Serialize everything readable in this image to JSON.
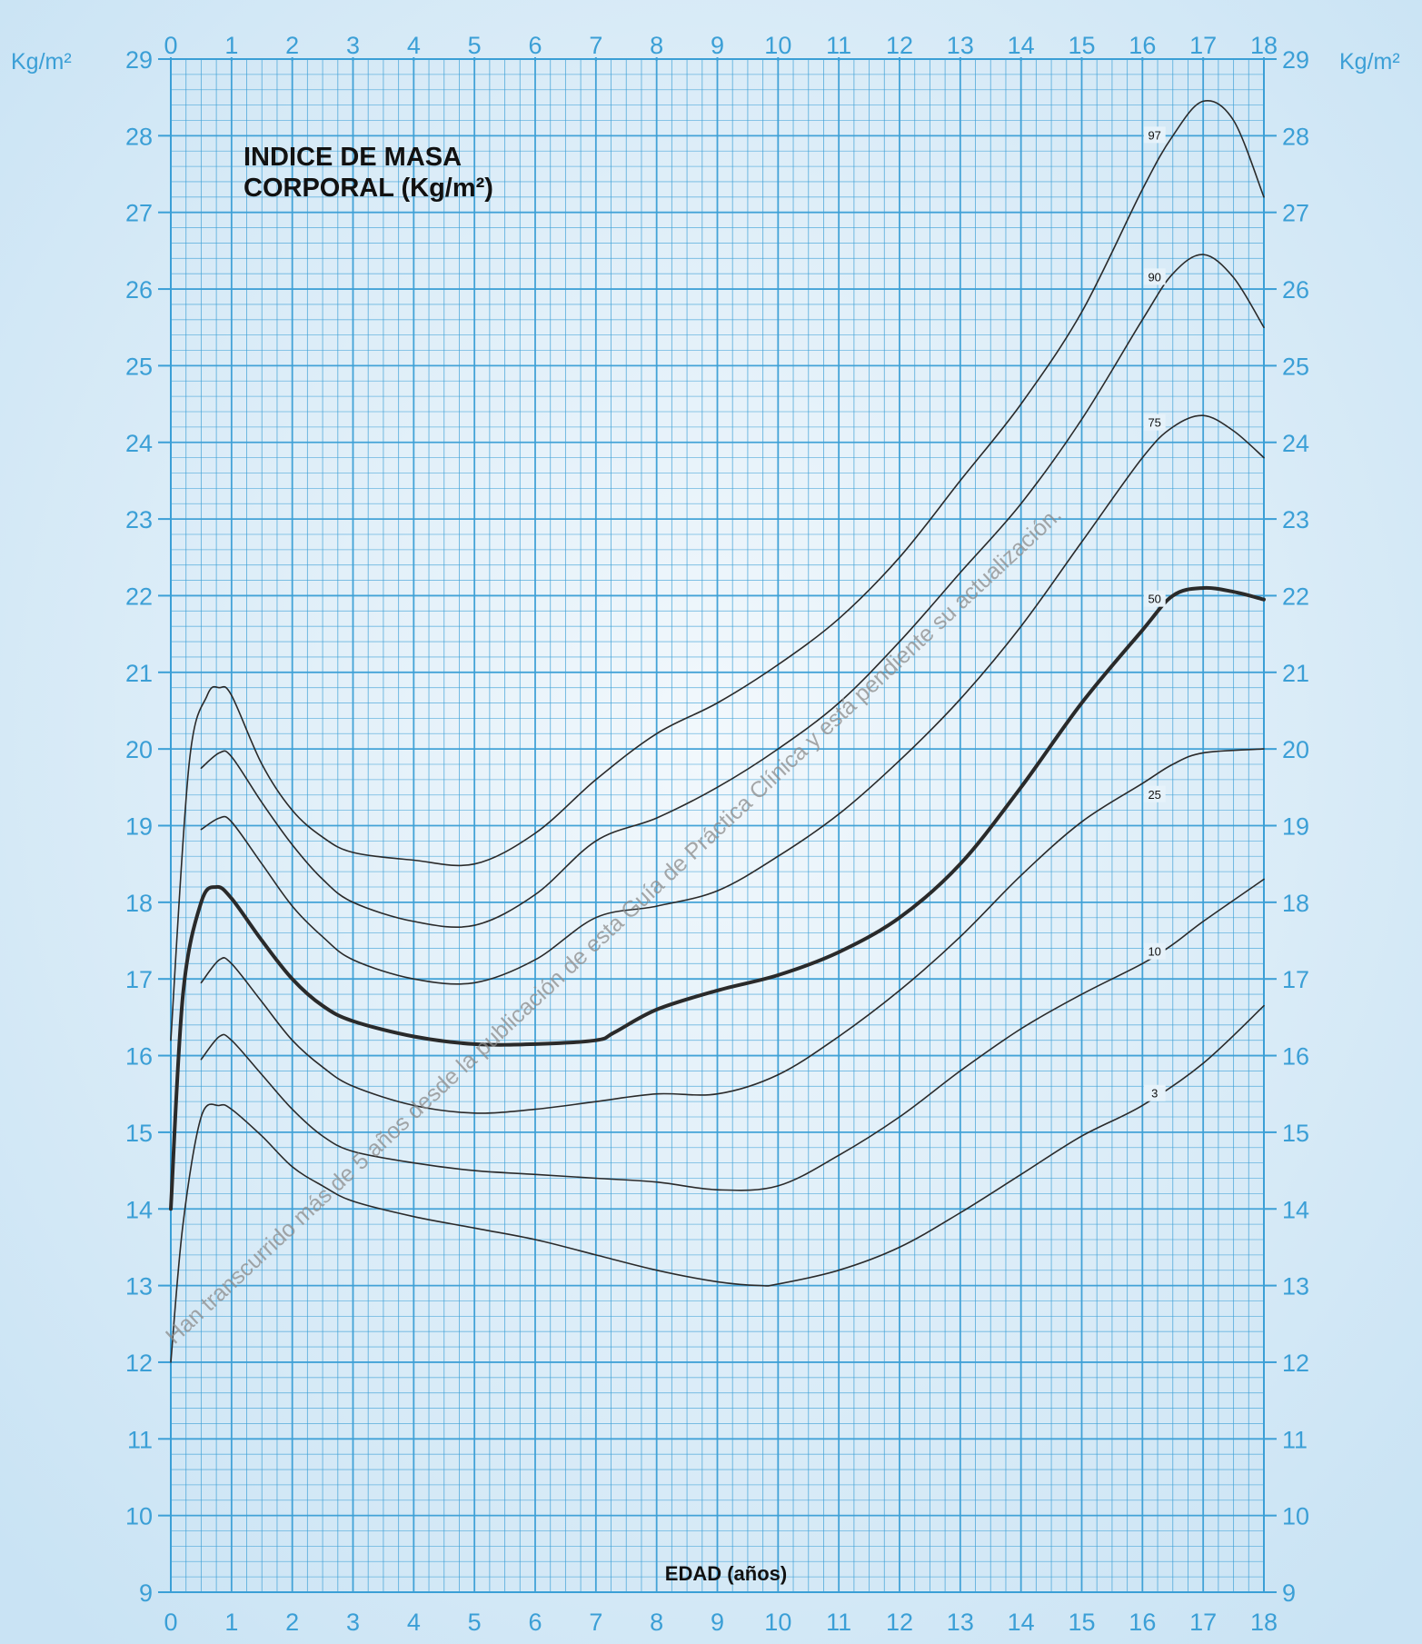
{
  "chart_data": {
    "type": "line",
    "title_lines": [
      "INDICE DE MASA",
      "CORPORAL (Kg/m²)"
    ],
    "xlabel": "EDAD (años)",
    "ylabel": "Kg/m²",
    "xlim": [
      0,
      18
    ],
    "ylim": [
      9,
      29
    ],
    "x_ticks": [
      "0",
      "1",
      "2",
      "3",
      "4",
      "5",
      "6",
      "7",
      "8",
      "9",
      "10",
      "11",
      "12",
      "13",
      "14",
      "15",
      "16",
      "17",
      "18"
    ],
    "y_ticks": [
      "9",
      "10",
      "11",
      "12",
      "13",
      "14",
      "15",
      "16",
      "17",
      "18",
      "19",
      "20",
      "21",
      "22",
      "23",
      "24",
      "25",
      "26",
      "27",
      "28",
      "29"
    ],
    "grid": true,
    "series": [
      {
        "name": "97",
        "bold": false,
        "label_at": [
          16.2,
          28.0
        ],
        "points": [
          [
            0,
            16.2
          ],
          [
            0.3,
            19.8
          ],
          [
            0.6,
            20.7
          ],
          [
            0.8,
            20.8
          ],
          [
            1.0,
            20.7
          ],
          [
            1.5,
            19.8
          ],
          [
            2,
            19.2
          ],
          [
            2.5,
            18.85
          ],
          [
            3,
            18.65
          ],
          [
            4,
            18.55
          ],
          [
            5,
            18.5
          ],
          [
            6,
            18.9
          ],
          [
            7,
            19.6
          ],
          [
            8,
            20.2
          ],
          [
            9,
            20.6
          ],
          [
            10,
            21.1
          ],
          [
            11,
            21.7
          ],
          [
            12,
            22.5
          ],
          [
            13,
            23.5
          ],
          [
            14,
            24.5
          ],
          [
            15,
            25.7
          ],
          [
            16,
            27.3
          ],
          [
            16.5,
            28.0
          ],
          [
            17,
            28.45
          ],
          [
            17.5,
            28.2
          ],
          [
            18,
            27.2
          ]
        ]
      },
      {
        "name": "90",
        "bold": false,
        "label_at": [
          16.2,
          26.15
        ],
        "points": [
          [
            0.5,
            19.75
          ],
          [
            0.8,
            19.95
          ],
          [
            1.0,
            19.9
          ],
          [
            1.5,
            19.3
          ],
          [
            2,
            18.75
          ],
          [
            2.5,
            18.3
          ],
          [
            3,
            18.0
          ],
          [
            4,
            17.75
          ],
          [
            5,
            17.7
          ],
          [
            6,
            18.1
          ],
          [
            7,
            18.8
          ],
          [
            8,
            19.1
          ],
          [
            9,
            19.5
          ],
          [
            10,
            20.0
          ],
          [
            11,
            20.6
          ],
          [
            12,
            21.4
          ],
          [
            13,
            22.3
          ],
          [
            14,
            23.2
          ],
          [
            15,
            24.3
          ],
          [
            16,
            25.6
          ],
          [
            16.5,
            26.2
          ],
          [
            17,
            26.45
          ],
          [
            17.5,
            26.15
          ],
          [
            18,
            25.5
          ]
        ]
      },
      {
        "name": "75",
        "bold": false,
        "label_at": [
          16.2,
          24.25
        ],
        "points": [
          [
            0.5,
            18.95
          ],
          [
            0.8,
            19.1
          ],
          [
            1.0,
            19.05
          ],
          [
            1.5,
            18.5
          ],
          [
            2,
            17.95
          ],
          [
            2.5,
            17.55
          ],
          [
            3,
            17.25
          ],
          [
            4,
            17.0
          ],
          [
            5,
            16.95
          ],
          [
            6,
            17.25
          ],
          [
            7,
            17.8
          ],
          [
            8,
            17.95
          ],
          [
            9,
            18.15
          ],
          [
            10,
            18.6
          ],
          [
            11,
            19.15
          ],
          [
            12,
            19.85
          ],
          [
            13,
            20.65
          ],
          [
            14,
            21.6
          ],
          [
            15,
            22.7
          ],
          [
            16,
            23.8
          ],
          [
            16.5,
            24.2
          ],
          [
            17,
            24.35
          ],
          [
            17.5,
            24.15
          ],
          [
            18,
            23.8
          ]
        ]
      },
      {
        "name": "50",
        "bold": true,
        "label_at": [
          16.2,
          21.95
        ],
        "points": [
          [
            0,
            14.0
          ],
          [
            0.2,
            16.8
          ],
          [
            0.5,
            18.0
          ],
          [
            0.75,
            18.2
          ],
          [
            1.0,
            18.05
          ],
          [
            1.5,
            17.5
          ],
          [
            2,
            17.0
          ],
          [
            2.5,
            16.65
          ],
          [
            3,
            16.45
          ],
          [
            4,
            16.25
          ],
          [
            5,
            16.15
          ],
          [
            6,
            16.15
          ],
          [
            7,
            16.2
          ],
          [
            7.3,
            16.3
          ],
          [
            8,
            16.6
          ],
          [
            9,
            16.85
          ],
          [
            10,
            17.05
          ],
          [
            11,
            17.35
          ],
          [
            12,
            17.8
          ],
          [
            13,
            18.5
          ],
          [
            14,
            19.5
          ],
          [
            15,
            20.6
          ],
          [
            16,
            21.55
          ],
          [
            16.5,
            22.0
          ],
          [
            17,
            22.1
          ],
          [
            17.5,
            22.05
          ],
          [
            18,
            21.95
          ]
        ]
      },
      {
        "name": "25",
        "bold": false,
        "label_at": [
          16.2,
          19.4
        ],
        "points": [
          [
            0.5,
            16.95
          ],
          [
            0.8,
            17.25
          ],
          [
            1.0,
            17.2
          ],
          [
            1.5,
            16.7
          ],
          [
            2,
            16.2
          ],
          [
            2.5,
            15.85
          ],
          [
            3,
            15.6
          ],
          [
            4,
            15.35
          ],
          [
            5,
            15.25
          ],
          [
            6,
            15.3
          ],
          [
            7,
            15.4
          ],
          [
            8,
            15.5
          ],
          [
            9,
            15.5
          ],
          [
            10,
            15.75
          ],
          [
            11,
            16.25
          ],
          [
            12,
            16.85
          ],
          [
            13,
            17.55
          ],
          [
            14,
            18.35
          ],
          [
            15,
            19.05
          ],
          [
            16,
            19.55
          ],
          [
            16.5,
            19.8
          ],
          [
            17,
            19.95
          ],
          [
            18,
            20.0
          ]
        ]
      },
      {
        "name": "10",
        "bold": false,
        "label_at": [
          16.2,
          17.35
        ],
        "points": [
          [
            0.5,
            15.95
          ],
          [
            0.8,
            16.25
          ],
          [
            1.0,
            16.2
          ],
          [
            1.5,
            15.75
          ],
          [
            2,
            15.3
          ],
          [
            2.5,
            14.95
          ],
          [
            3,
            14.75
          ],
          [
            4,
            14.6
          ],
          [
            5,
            14.5
          ],
          [
            6,
            14.45
          ],
          [
            7,
            14.4
          ],
          [
            8,
            14.35
          ],
          [
            9,
            14.25
          ],
          [
            10,
            14.3
          ],
          [
            11,
            14.7
          ],
          [
            12,
            15.2
          ],
          [
            13,
            15.8
          ],
          [
            14,
            16.35
          ],
          [
            15,
            16.8
          ],
          [
            16,
            17.2
          ],
          [
            16.5,
            17.45
          ],
          [
            17,
            17.75
          ],
          [
            18,
            18.3
          ]
        ]
      },
      {
        "name": "3",
        "bold": false,
        "label_at": [
          16.2,
          15.5
        ],
        "points": [
          [
            0,
            12.0
          ],
          [
            0.2,
            13.8
          ],
          [
            0.5,
            15.2
          ],
          [
            0.8,
            15.35
          ],
          [
            1.0,
            15.3
          ],
          [
            1.5,
            14.95
          ],
          [
            2,
            14.55
          ],
          [
            2.5,
            14.3
          ],
          [
            3,
            14.1
          ],
          [
            4,
            13.9
          ],
          [
            5,
            13.75
          ],
          [
            6,
            13.6
          ],
          [
            7,
            13.4
          ],
          [
            8,
            13.2
          ],
          [
            9,
            13.05
          ],
          [
            9.7,
            13.0
          ],
          [
            10,
            13.02
          ],
          [
            11,
            13.2
          ],
          [
            12,
            13.5
          ],
          [
            13,
            13.95
          ],
          [
            14,
            14.45
          ],
          [
            15,
            14.95
          ],
          [
            16,
            15.35
          ],
          [
            17,
            15.9
          ],
          [
            18,
            16.65
          ]
        ]
      }
    ]
  },
  "watermark": "Han transcurrido más de 5 años desde la publicación de esta Guía de Práctica Clínica y está pendiente su actualización.",
  "colors": {
    "background": "#d7ebf7",
    "grid": "#3b9fd6",
    "curve": "#2a2a2a",
    "tick_text": "#3b9fd6"
  }
}
